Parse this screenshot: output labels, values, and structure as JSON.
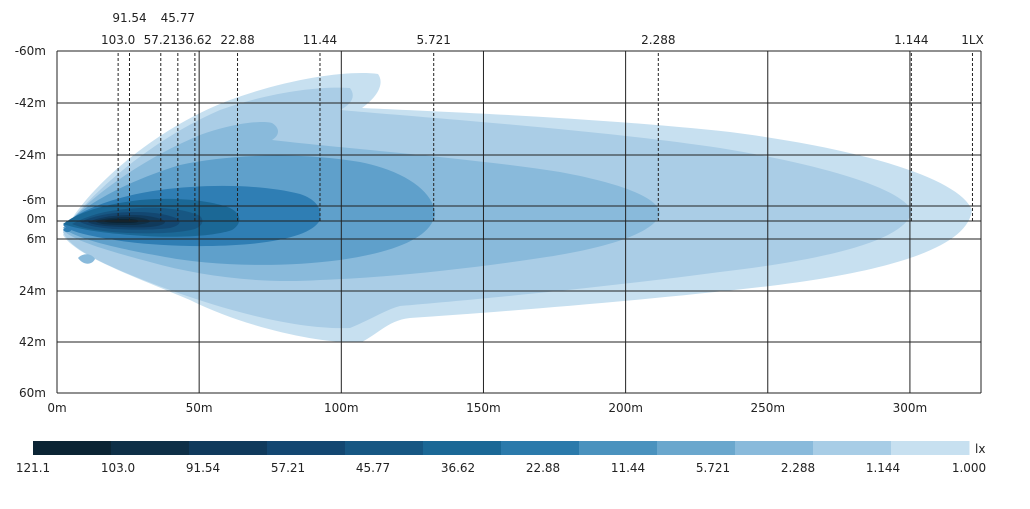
{
  "chart_data": {
    "type": "heatmap",
    "title": "",
    "x_axis": {
      "values": [
        0,
        50,
        100,
        150,
        200,
        250,
        300
      ],
      "tick_labels": [
        "0m",
        "50m",
        "100m",
        "150m",
        "200m",
        "250m",
        "300m"
      ],
      "range": [
        0,
        325
      ]
    },
    "y_axis": {
      "values": [
        -60,
        -42,
        -24,
        -6,
        0,
        6,
        24,
        42,
        60
      ],
      "tick_labels": [
        "-60m",
        "-42m",
        "-24m",
        "-6m",
        "0m",
        "6m",
        "24m",
        "42m",
        "60m"
      ],
      "range": [
        -60,
        60
      ]
    },
    "grid": true,
    "isolux_lines": [
      {
        "label": "103.0",
        "x": 21.5
      },
      {
        "label": "91.54",
        "x": 25.5
      },
      {
        "label": "57.21",
        "x": 36.5
      },
      {
        "label": "45.77",
        "x": 42.5
      },
      {
        "label": "36.62",
        "x": 48.5
      },
      {
        "label": "22.88",
        "x": 63.5
      },
      {
        "label": "11.44",
        "x": 92.5
      },
      {
        "label": "5.721",
        "x": 132.5
      },
      {
        "label": "2.288",
        "x": 211.5
      },
      {
        "label": "1.144",
        "x": 300.5
      },
      {
        "label": "1LX",
        "x": 322.0
      }
    ],
    "legend": {
      "unit": "lx",
      "placement": "bottom",
      "labels": [
        "121.1",
        "103.0",
        "91.54",
        "57.21",
        "45.77",
        "36.62",
        "22.88",
        "11.44",
        "5.721",
        "2.288",
        "1.144",
        "1.000"
      ],
      "colors": [
        "#0b2434",
        "#0e2f47",
        "#103a5c",
        "#134771",
        "#175783",
        "#1b6896",
        "#2b7aab",
        "#4a92be",
        "#6aa7cd",
        "#89badb",
        "#a8cde6",
        "#c7e0f0"
      ]
    },
    "series_colors": {
      "1.000": "#c7e0f0",
      "1.144": "#aacde6",
      "2.288": "#89badb",
      "5.721": "#5fa0cb",
      "11.44": "#2f7eb4",
      "22.88": "#1b6896",
      "36.62": "#175783",
      "45.77": "#134771",
      "57.21": "#103a5c",
      "91.54": "#0e2f47",
      "103.0": "#0b2434"
    }
  }
}
